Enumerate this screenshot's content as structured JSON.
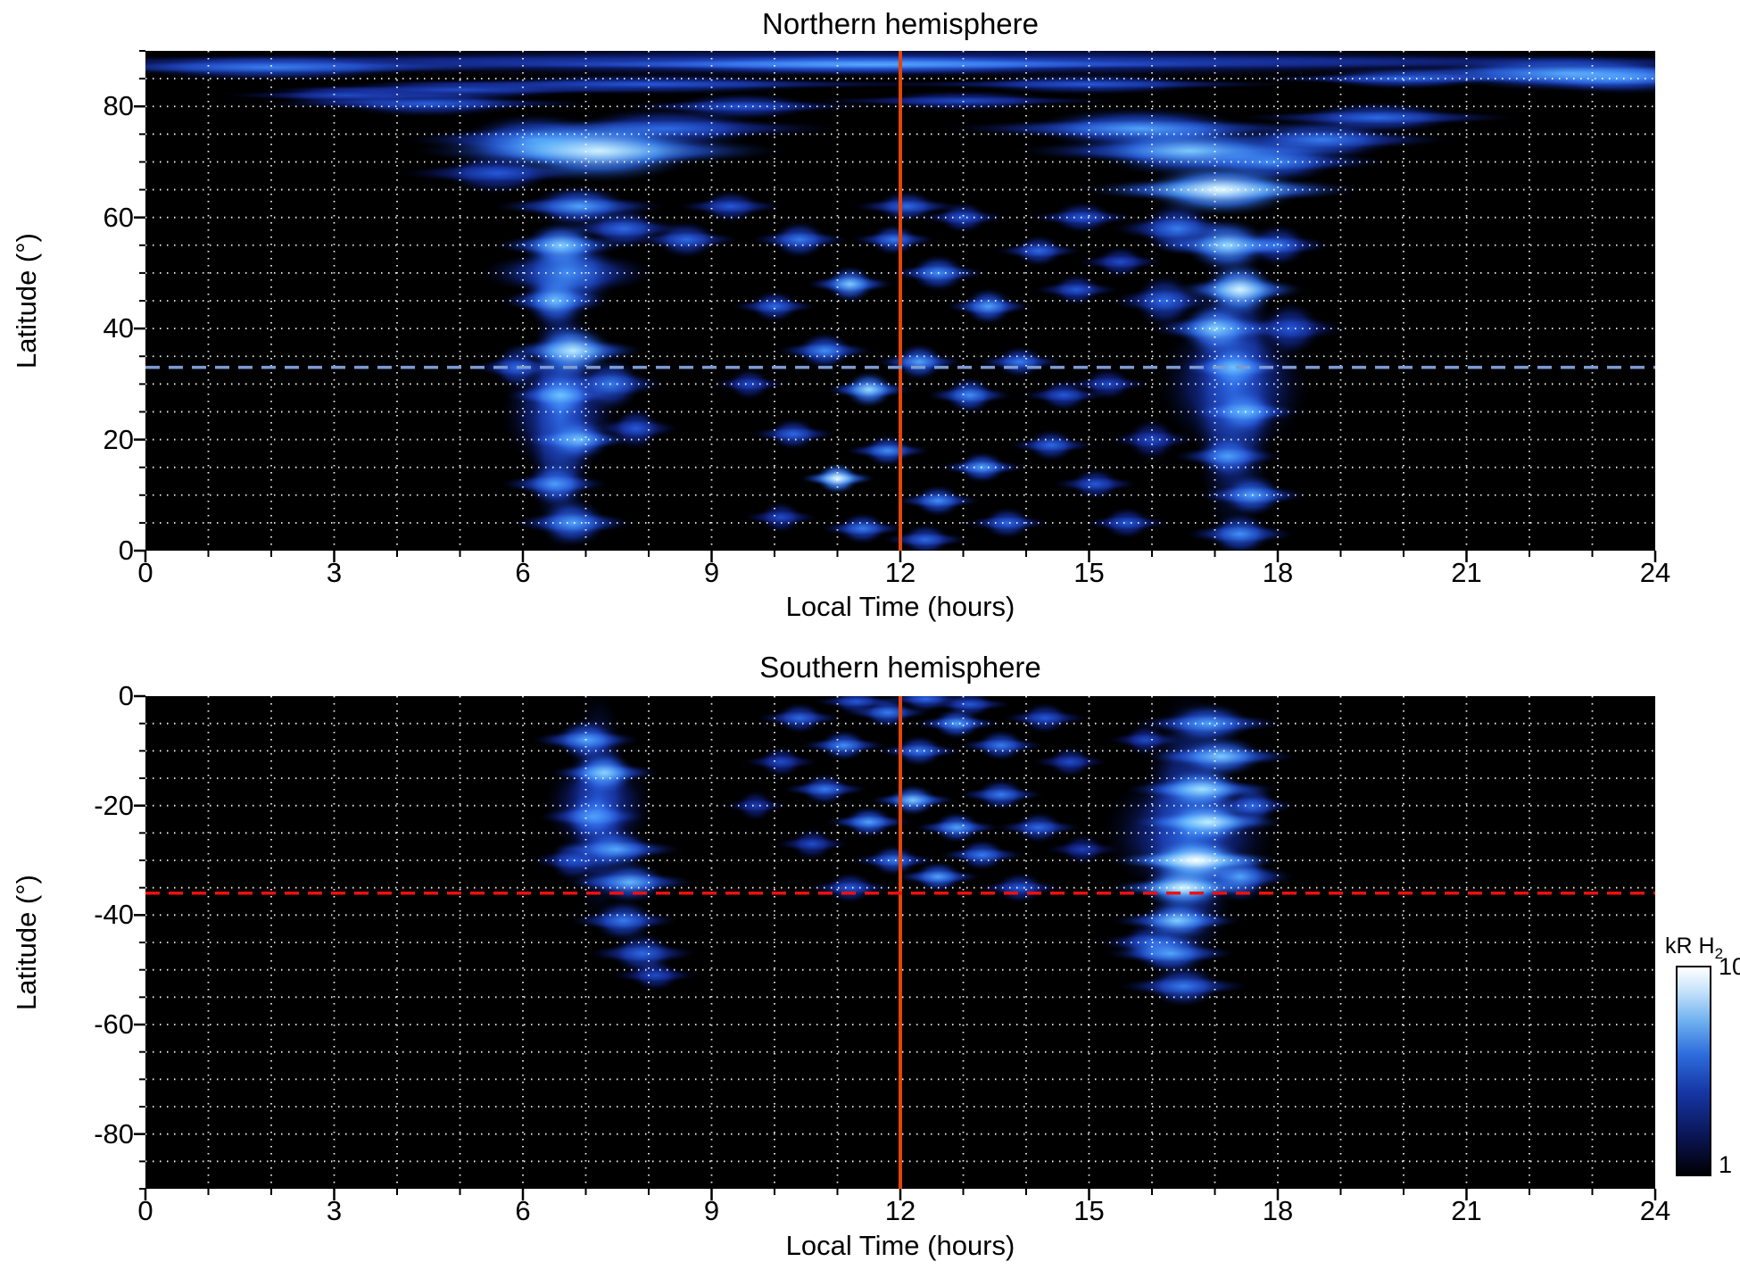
{
  "colorbar": {
    "label_main": "kR H",
    "label_sub": "2",
    "tick_top": "10",
    "tick_bottom": "1"
  },
  "colors": {
    "background": "#ffffff",
    "plot_background": "#000000",
    "grid": "#ffffff",
    "text": "#000000",
    "noon_line": "#e2450a",
    "north_dashed_line": "#7d9ad2",
    "south_dashed_line": "#f01010",
    "colormap_stops": [
      [
        0,
        "#000004"
      ],
      [
        0.18,
        "#0a1452"
      ],
      [
        0.4,
        "#1637a6"
      ],
      [
        0.58,
        "#2e6cdc"
      ],
      [
        0.74,
        "#6fb0ef"
      ],
      [
        0.88,
        "#c2e1fa"
      ],
      [
        1,
        "#ffffff"
      ]
    ]
  },
  "chart_data": [
    {
      "type": "heatmap",
      "title": "Northern hemisphere",
      "xlabel": "Local Time (hours)",
      "ylabel": "Latitude (°)",
      "xlim": [
        0,
        24
      ],
      "ylim": [
        0,
        90
      ],
      "xticks": [
        0,
        3,
        6,
        9,
        12,
        15,
        18,
        21,
        24
      ],
      "yticks": [
        0,
        20,
        40,
        60,
        80
      ],
      "grid": {
        "x_step": 1,
        "y_step": 5,
        "style": "dotted",
        "color": "#ffffff"
      },
      "value_label": "kR H2",
      "value_range": [
        1,
        10
      ],
      "value_scale": "log",
      "ref_lines": [
        {
          "orientation": "vertical",
          "value": 12,
          "color": "#e2450a",
          "width": 4,
          "dash": ""
        },
        {
          "orientation": "horizontal",
          "value": 33,
          "color": "#7d9ad2",
          "width": 3.5,
          "dash": "16 10"
        }
      ],
      "feature_columns": [
        "local_time_h",
        "latitude_deg",
        "halfwidth_h",
        "halfheight_deg",
        "relative_intensity"
      ],
      "features": [
        [
          12,
          88,
          13,
          3,
          0.35
        ],
        [
          2,
          87,
          2.5,
          2.5,
          0.5
        ],
        [
          11.5,
          87.5,
          4,
          2,
          0.55
        ],
        [
          22.6,
          86,
          2.2,
          3.5,
          0.6
        ],
        [
          23.5,
          85,
          1.5,
          3,
          0.5
        ],
        [
          20,
          85,
          1.5,
          2,
          0.45
        ],
        [
          8,
          84,
          3,
          2,
          0.4
        ],
        [
          5,
          83,
          2,
          2,
          0.35
        ],
        [
          15,
          84,
          2,
          2,
          0.4
        ],
        [
          4.5,
          80.5,
          1.6,
          2.5,
          0.42
        ],
        [
          3.2,
          82,
          1.2,
          2,
          0.35
        ],
        [
          9.5,
          80,
          1.2,
          2.5,
          0.4
        ],
        [
          13,
          81,
          1.5,
          2,
          0.35
        ],
        [
          6.6,
          25,
          0.55,
          27,
          0.45
        ],
        [
          6.7,
          50,
          0.8,
          9,
          0.55
        ],
        [
          7.2,
          72,
          1.7,
          6,
          0.85
        ],
        [
          6.2,
          74,
          1.2,
          5,
          0.55
        ],
        [
          8.3,
          76,
          1.6,
          4,
          0.45
        ],
        [
          5.6,
          68,
          0.9,
          4,
          0.4
        ],
        [
          6.9,
          62,
          0.8,
          4,
          0.6
        ],
        [
          6.6,
          55,
          0.6,
          4.5,
          0.7
        ],
        [
          6.5,
          45,
          0.5,
          5,
          0.65
        ],
        [
          6.8,
          36,
          0.65,
          5,
          0.8
        ],
        [
          6.6,
          28,
          0.5,
          4,
          0.6
        ],
        [
          6.9,
          20,
          0.5,
          4,
          0.65
        ],
        [
          6.5,
          12,
          0.5,
          4,
          0.55
        ],
        [
          6.8,
          5,
          0.55,
          4.5,
          0.6
        ],
        [
          7.4,
          30,
          0.5,
          5,
          0.5
        ],
        [
          7.8,
          22,
          0.4,
          4,
          0.4
        ],
        [
          5.9,
          33,
          0.4,
          4,
          0.45
        ],
        [
          7.6,
          58,
          0.6,
          4,
          0.45
        ],
        [
          17.3,
          30,
          0.7,
          30,
          0.45
        ],
        [
          17.1,
          65,
          1.3,
          5,
          0.9
        ],
        [
          16.6,
          72,
          1.6,
          5,
          0.7
        ],
        [
          15.8,
          76,
          1.8,
          4,
          0.6
        ],
        [
          17.9,
          70,
          1.1,
          4,
          0.55
        ],
        [
          18.7,
          74,
          1.2,
          4,
          0.5
        ],
        [
          19.6,
          78,
          1.3,
          3,
          0.45
        ],
        [
          17.2,
          55,
          0.7,
          5,
          0.75
        ],
        [
          17.4,
          47,
          0.6,
          5,
          0.85
        ],
        [
          17.0,
          40,
          0.6,
          5,
          0.7
        ],
        [
          17.3,
          33,
          0.5,
          4,
          0.6
        ],
        [
          17.5,
          25,
          0.5,
          4,
          0.6
        ],
        [
          17.2,
          17,
          0.5,
          4,
          0.55
        ],
        [
          17.6,
          10,
          0.5,
          4,
          0.6
        ],
        [
          17.4,
          3,
          0.5,
          4,
          0.55
        ],
        [
          16.4,
          58,
          0.6,
          5,
          0.5
        ],
        [
          16.2,
          45,
          0.5,
          5,
          0.45
        ],
        [
          18.2,
          40,
          0.5,
          5,
          0.4
        ],
        [
          16.0,
          20,
          0.4,
          4,
          0.35
        ],
        [
          18.0,
          55,
          0.5,
          4,
          0.45
        ],
        [
          10.4,
          56,
          0.45,
          3.5,
          0.5
        ],
        [
          11.2,
          48,
          0.4,
          3.5,
          0.7
        ],
        [
          11.9,
          56,
          0.4,
          3,
          0.5
        ],
        [
          12.6,
          50,
          0.45,
          3.5,
          0.55
        ],
        [
          13.4,
          44,
          0.4,
          3.5,
          0.6
        ],
        [
          14.2,
          54,
          0.4,
          3,
          0.45
        ],
        [
          14.8,
          47,
          0.4,
          3,
          0.4
        ],
        [
          10.0,
          44,
          0.4,
          3,
          0.45
        ],
        [
          10.8,
          36,
          0.45,
          3.5,
          0.55
        ],
        [
          11.5,
          29,
          0.4,
          3.5,
          0.75
        ],
        [
          12.3,
          34,
          0.4,
          3.5,
          0.6
        ],
        [
          13.1,
          28,
          0.4,
          3.5,
          0.55
        ],
        [
          13.9,
          34,
          0.4,
          3,
          0.5
        ],
        [
          14.6,
          28,
          0.4,
          3,
          0.4
        ],
        [
          10.3,
          21,
          0.4,
          3,
          0.45
        ],
        [
          11.0,
          13,
          0.35,
          3,
          0.9
        ],
        [
          11.8,
          18,
          0.4,
          3,
          0.55
        ],
        [
          12.6,
          9,
          0.4,
          3,
          0.55
        ],
        [
          13.3,
          15,
          0.4,
          3,
          0.6
        ],
        [
          14.4,
          19,
          0.4,
          3,
          0.45
        ],
        [
          15.1,
          12,
          0.4,
          3,
          0.4
        ],
        [
          11.4,
          4,
          0.4,
          3,
          0.5
        ],
        [
          12.4,
          2,
          0.4,
          3,
          0.45
        ],
        [
          13.7,
          5,
          0.4,
          3,
          0.45
        ],
        [
          10.1,
          6,
          0.35,
          3,
          0.35
        ],
        [
          9.6,
          30,
          0.35,
          3,
          0.35
        ],
        [
          8.6,
          56,
          0.5,
          3.5,
          0.45
        ],
        [
          9.3,
          62,
          0.5,
          3,
          0.4
        ],
        [
          12.1,
          62,
          0.5,
          3,
          0.45
        ],
        [
          13.0,
          60,
          0.4,
          3,
          0.4
        ],
        [
          14.9,
          60,
          0.5,
          3,
          0.4
        ],
        [
          15.5,
          52,
          0.4,
          3,
          0.35
        ],
        [
          15.3,
          30,
          0.4,
          3,
          0.35
        ],
        [
          15.6,
          5,
          0.4,
          3,
          0.4
        ]
      ]
    },
    {
      "type": "heatmap",
      "title": "Southern hemisphere",
      "xlabel": "Local Time (hours)",
      "ylabel": "Latitude (°)",
      "xlim": [
        0,
        24
      ],
      "ylim": [
        -90,
        0
      ],
      "xticks": [
        0,
        3,
        6,
        9,
        12,
        15,
        18,
        21,
        24
      ],
      "yticks": [
        0,
        -20,
        -40,
        -60,
        -80
      ],
      "grid": {
        "x_step": 1,
        "y_step": 5,
        "style": "dotted",
        "color": "#ffffff"
      },
      "value_label": "kR H2",
      "value_range": [
        1,
        10
      ],
      "value_scale": "log",
      "ref_lines": [
        {
          "orientation": "vertical",
          "value": 12,
          "color": "#e2450a",
          "width": 4,
          "dash": ""
        },
        {
          "orientation": "horizontal",
          "value": -36,
          "color": "#f01010",
          "width": 3.5,
          "dash": "16 10"
        }
      ],
      "feature_columns": [
        "local_time_h",
        "latitude_deg",
        "halfwidth_h",
        "halfheight_deg",
        "relative_intensity"
      ],
      "features": [
        [
          7.2,
          -20,
          0.5,
          22,
          0.4
        ],
        [
          7.0,
          -8,
          0.5,
          4,
          0.6
        ],
        [
          7.3,
          -14,
          0.5,
          4,
          0.7
        ],
        [
          7.1,
          -22,
          0.5,
          4,
          0.5
        ],
        [
          7.5,
          -28,
          0.6,
          4,
          0.6
        ],
        [
          7.7,
          -34,
          0.6,
          4,
          0.65
        ],
        [
          7.6,
          -41,
          0.5,
          4,
          0.5
        ],
        [
          7.9,
          -47,
          0.5,
          4,
          0.45
        ],
        [
          8.1,
          -51,
          0.4,
          3,
          0.35
        ],
        [
          6.8,
          -30,
          0.4,
          4,
          0.4
        ],
        [
          10.4,
          -4,
          0.4,
          3,
          0.45
        ],
        [
          11.1,
          -9,
          0.4,
          3,
          0.55
        ],
        [
          11.8,
          -3,
          0.4,
          3,
          0.5
        ],
        [
          12.3,
          -10,
          0.4,
          3,
          0.5
        ],
        [
          12.9,
          -5,
          0.4,
          3,
          0.6
        ],
        [
          13.6,
          -9,
          0.4,
          3,
          0.5
        ],
        [
          14.3,
          -4,
          0.4,
          3,
          0.4
        ],
        [
          10.8,
          -17,
          0.4,
          3,
          0.5
        ],
        [
          11.5,
          -23,
          0.4,
          3,
          0.6
        ],
        [
          12.2,
          -19,
          0.4,
          3,
          0.7
        ],
        [
          12.9,
          -24,
          0.4,
          3,
          0.6
        ],
        [
          13.6,
          -18,
          0.4,
          3,
          0.5
        ],
        [
          14.2,
          -24,
          0.4,
          3,
          0.45
        ],
        [
          11.9,
          -30,
          0.4,
          3,
          0.5
        ],
        [
          12.6,
          -33,
          0.4,
          3,
          0.6
        ],
        [
          13.3,
          -29,
          0.4,
          3,
          0.5
        ],
        [
          11.2,
          -35,
          0.4,
          3,
          0.4
        ],
        [
          10.6,
          -27,
          0.35,
          3,
          0.35
        ],
        [
          14.7,
          -12,
          0.35,
          3,
          0.35
        ],
        [
          14.9,
          -28,
          0.35,
          3,
          0.3
        ],
        [
          10.1,
          -12,
          0.35,
          3,
          0.35
        ],
        [
          13.9,
          -35,
          0.4,
          3,
          0.4
        ],
        [
          12.4,
          -0.5,
          0.4,
          2.5,
          0.45
        ],
        [
          11.3,
          -1,
          0.4,
          2.5,
          0.4
        ],
        [
          13.1,
          -1.5,
          0.4,
          2.5,
          0.4
        ],
        [
          9.7,
          -20,
          0.3,
          3,
          0.3
        ],
        [
          15.9,
          -8,
          0.35,
          3,
          0.35
        ],
        [
          16.6,
          -25,
          0.8,
          28,
          0.45
        ],
        [
          16.9,
          -5,
          0.7,
          4,
          0.6
        ],
        [
          17.1,
          -11,
          0.7,
          4,
          0.7
        ],
        [
          16.8,
          -17,
          0.7,
          4,
          0.75
        ],
        [
          16.9,
          -23,
          0.7,
          4,
          0.8
        ],
        [
          16.7,
          -30,
          0.8,
          4,
          0.95
        ],
        [
          16.5,
          -35,
          0.7,
          4,
          0.85
        ],
        [
          16.4,
          -41,
          0.6,
          4,
          0.7
        ],
        [
          16.3,
          -47,
          0.6,
          4,
          0.6
        ],
        [
          16.5,
          -53,
          0.6,
          4,
          0.5
        ],
        [
          17.4,
          -33,
          0.5,
          5,
          0.6
        ],
        [
          17.6,
          -20,
          0.4,
          4,
          0.45
        ],
        [
          16.0,
          -45,
          0.5,
          4,
          0.45
        ]
      ]
    }
  ]
}
